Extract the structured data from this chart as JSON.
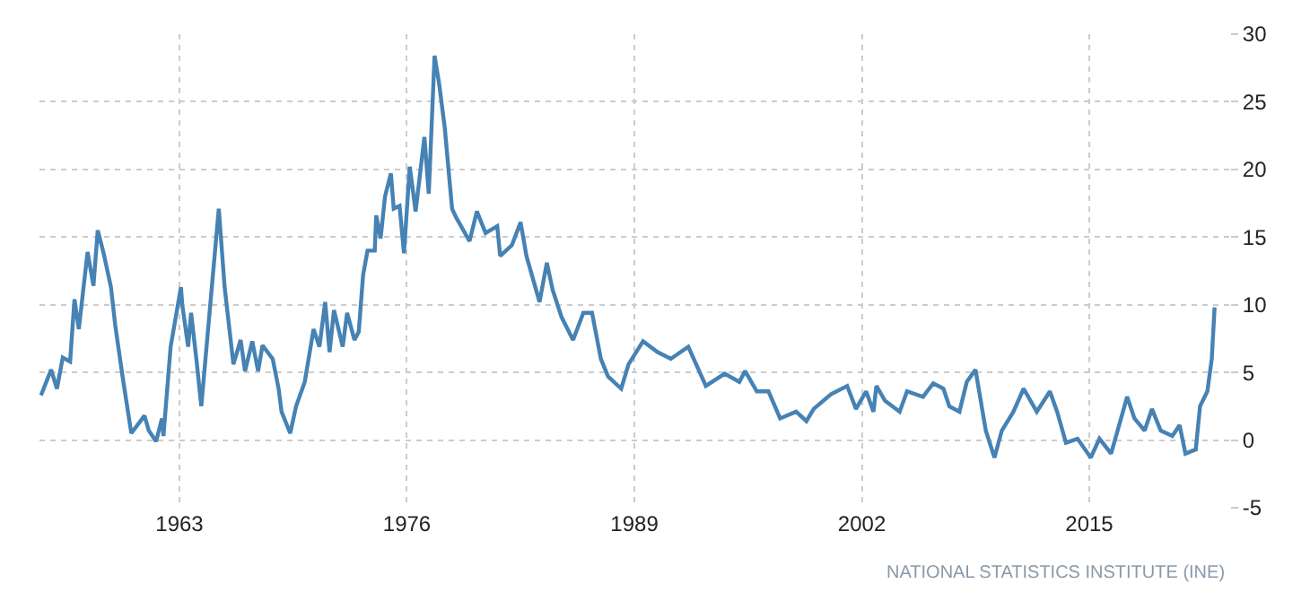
{
  "chart_data": {
    "type": "line",
    "x": [
      "1955-02",
      "1955-09",
      "1956-01",
      "1956-05",
      "1956-10",
      "1957-01",
      "1957-04",
      "1957-10",
      "1958-02",
      "1958-05",
      "1958-09",
      "1959-02",
      "1959-05",
      "1959-10",
      "1960-04",
      "1961-01",
      "1961-04",
      "1961-09",
      "1962-01",
      "1962-02",
      "1962-07",
      "1963-02",
      "1963-03",
      "1963-07",
      "1963-09",
      "1964-01",
      "1964-04",
      "1964-08",
      "1965-04",
      "1965-08",
      "1966-02",
      "1966-07",
      "1966-10",
      "1967-03",
      "1967-07",
      "1967-10",
      "1968-05",
      "1968-09",
      "1968-11",
      "1969-05",
      "1969-09",
      "1970-03",
      "1970-09",
      "1971-01",
      "1971-05",
      "1971-08",
      "1971-11",
      "1972-05",
      "1972-08",
      "1973-01",
      "1973-04",
      "1973-07",
      "1973-10",
      "1974-03",
      "1974-04",
      "1974-07",
      "1974-10",
      "1975-02",
      "1975-04",
      "1975-08",
      "1975-11",
      "1976-03",
      "1976-07",
      "1977-01",
      "1977-04",
      "1977-08",
      "1977-11",
      "1978-03",
      "1978-08",
      "1978-11",
      "1979-08",
      "1980-01",
      "1980-07",
      "1981-03",
      "1981-05",
      "1982-01",
      "1982-07",
      "1982-11",
      "1983-08",
      "1984-01",
      "1984-05",
      "1984-11",
      "1985-07",
      "1986-02",
      "1986-08",
      "1987-02",
      "1987-07",
      "1988-04",
      "1988-09",
      "1989-07",
      "1990-05",
      "1991-02",
      "1992-02",
      "1993-02",
      "1994-03",
      "1995-01",
      "1995-05",
      "1996-01",
      "1996-09",
      "1997-05",
      "1998-04",
      "1998-11",
      "1999-04",
      "2000-04",
      "2001-03",
      "2001-09",
      "2002-04",
      "2002-09",
      "2002-11",
      "2003-05",
      "2004-03",
      "2004-08",
      "2005-07",
      "2006-02",
      "2006-09",
      "2007-01",
      "2007-08",
      "2008-01",
      "2008-07",
      "2009-02",
      "2009-08",
      "2010-01",
      "2010-09",
      "2011-04",
      "2012-01",
      "2012-10",
      "2013-03",
      "2013-09",
      "2014-05",
      "2015-02",
      "2015-08",
      "2016-04",
      "2017-03",
      "2017-08",
      "2018-03",
      "2018-08",
      "2019-02",
      "2019-10",
      "2020-03",
      "2020-07",
      "2021-02",
      "2021-05",
      "2021-10",
      "2022-01",
      "2022-03"
    ],
    "series": [
      {
        "color": "#4682b4",
        "values": [
          3.3,
          5.2,
          3.8,
          6.1,
          5.8,
          10.4,
          8.2,
          13.9,
          11.4,
          15.5,
          13.8,
          11.3,
          8.5,
          4.7,
          0.5,
          1.8,
          0.7,
          -0.1,
          1.6,
          0.3,
          6.9,
          11.3,
          10.0,
          6.9,
          9.4,
          5.6,
          2.5,
          7.4,
          17.1,
          11.3,
          5.6,
          7.4,
          5.1,
          7.3,
          5.1,
          7.0,
          6.0,
          3.8,
          2.1,
          0.5,
          2.5,
          4.3,
          8.2,
          6.9,
          10.2,
          6.5,
          9.6,
          6.9,
          9.4,
          7.4,
          8.0,
          12.2,
          14.0,
          14.0,
          16.6,
          14.9,
          18.0,
          19.7,
          17.1,
          17.3,
          13.8,
          20.2,
          16.9,
          22.4,
          18.2,
          28.4,
          26.4,
          23.1,
          17.1,
          16.4,
          14.7,
          16.9,
          15.3,
          15.8,
          13.6,
          14.4,
          16.1,
          13.6,
          10.2,
          13.1,
          11.1,
          9.1,
          7.4,
          9.4,
          9.4,
          6.0,
          4.7,
          3.8,
          5.6,
          7.3,
          6.5,
          6.0,
          6.9,
          4.0,
          4.9,
          4.3,
          5.1,
          3.6,
          3.6,
          1.6,
          2.1,
          1.4,
          2.3,
          3.4,
          4.0,
          2.3,
          3.6,
          2.1,
          4.0,
          2.9,
          2.1,
          3.6,
          3.2,
          4.2,
          3.8,
          2.5,
          2.1,
          4.3,
          5.2,
          0.7,
          -1.3,
          0.7,
          2.1,
          3.8,
          2.1,
          3.6,
          2.1,
          -0.2,
          0.1,
          -1.3,
          0.1,
          -1.0,
          3.2,
          1.6,
          0.7,
          2.3,
          0.7,
          0.3,
          1.1,
          -1.0,
          -0.7,
          2.5,
          3.6,
          6.0,
          9.8
        ]
      }
    ],
    "xlim": [
      "1955-01",
      "2023-01"
    ],
    "xticks": [
      "1963",
      "1976",
      "1989",
      "2002",
      "2015"
    ],
    "ylim": [
      -5,
      30
    ],
    "yticks": [
      -5,
      0,
      5,
      10,
      15,
      20,
      25,
      30
    ],
    "grid": true,
    "annotations": [
      "NATIONAL STATISTICS INSTITUTE (INE)"
    ]
  }
}
